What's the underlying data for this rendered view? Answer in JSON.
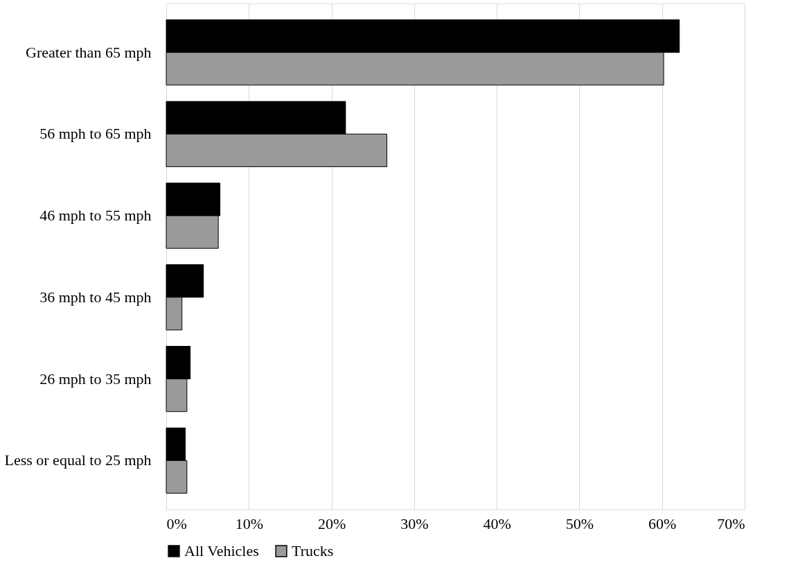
{
  "chart_data": {
    "type": "bar",
    "orientation": "horizontal",
    "categories": [
      "Greater than 65 mph",
      "56 mph to 65 mph",
      "46 mph to 55 mph",
      "36 mph to 45 mph",
      "26 mph to 35 mph",
      "Less or equal to 25 mph"
    ],
    "series": [
      {
        "name": "All Vehicles",
        "color": "#000000",
        "values": [
          62.1,
          21.7,
          6.5,
          4.5,
          2.9,
          2.3
        ]
      },
      {
        "name": "Trucks",
        "color": "#9a9a9a",
        "values": [
          60.2,
          26.7,
          6.3,
          1.9,
          2.5,
          2.5
        ]
      }
    ],
    "xlim": [
      0,
      70
    ],
    "xticks": [
      {
        "value": 0,
        "label": "0%"
      },
      {
        "value": 10,
        "label": "10%"
      },
      {
        "value": 20,
        "label": "20%"
      },
      {
        "value": 30,
        "label": "30%"
      },
      {
        "value": 40,
        "label": "40%"
      },
      {
        "value": 50,
        "label": "50%"
      },
      {
        "value": 60,
        "label": "60%"
      },
      {
        "value": 70,
        "label": "70%"
      }
    ],
    "grid": "x",
    "legend": "bottom"
  }
}
